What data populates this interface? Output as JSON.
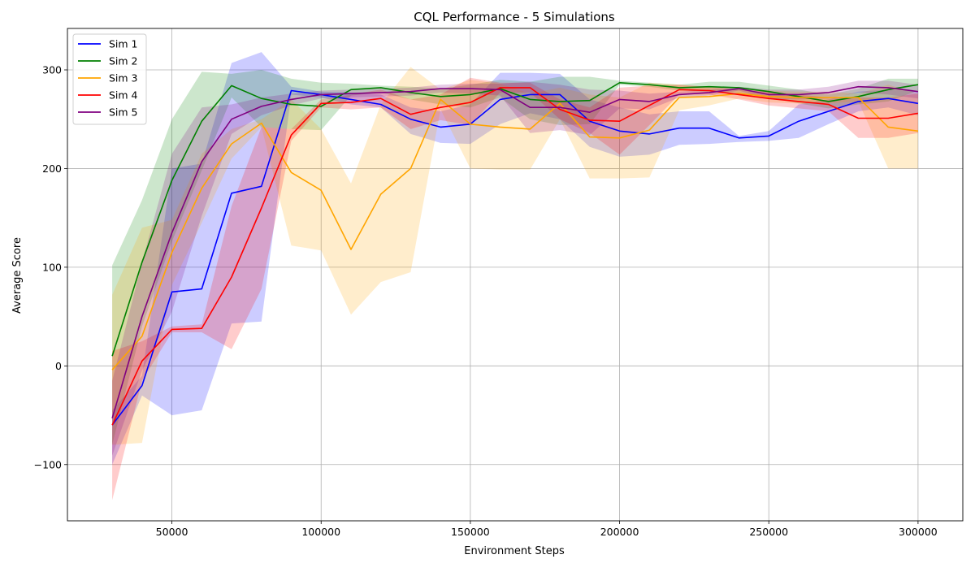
{
  "chart_data": {
    "type": "line",
    "title": "CQL Performance - 5 Simulations",
    "xlabel": "Environment Steps",
    "ylabel": "Average Score",
    "xlim": [
      15000,
      315000
    ],
    "ylim": [
      -157,
      342
    ],
    "xticks": [
      50000,
      100000,
      150000,
      200000,
      250000,
      300000
    ],
    "yticks": [
      -100,
      0,
      100,
      200,
      300
    ],
    "xtick_labels": [
      "50000",
      "100000",
      "150000",
      "200000",
      "250000",
      "300000"
    ],
    "ytick_labels": [
      "−100",
      "0",
      "100",
      "200",
      "300"
    ],
    "grid": true,
    "legend_position": "top-left",
    "x": [
      30000,
      40000,
      50000,
      60000,
      70000,
      80000,
      90000,
      100000,
      110000,
      120000,
      130000,
      140000,
      150000,
      160000,
      170000,
      180000,
      190000,
      200000,
      210000,
      220000,
      230000,
      240000,
      250000,
      260000,
      270000,
      280000,
      290000,
      300000
    ],
    "series": [
      {
        "name": "Sim 1",
        "color": "#0000ff",
        "values": [
          -60,
          -20,
          75,
          78,
          175,
          182,
          279,
          275,
          270,
          265,
          250,
          242,
          245,
          270,
          275,
          275,
          248,
          238,
          235,
          241,
          241,
          231,
          233,
          248,
          258,
          268,
          271,
          266
        ],
        "upper": [
          -45,
          -10,
          200,
          205,
          307,
          318,
          283,
          278,
          277,
          275,
          262,
          258,
          265,
          297,
          297,
          296,
          270,
          262,
          255,
          258,
          258,
          233,
          238,
          265,
          270,
          278,
          280,
          278
        ],
        "lower": [
          -100,
          -30,
          -50,
          -45,
          43,
          45,
          275,
          272,
          265,
          262,
          235,
          226,
          225,
          245,
          256,
          250,
          222,
          212,
          214,
          224,
          225,
          227,
          228,
          231,
          245,
          258,
          262,
          254
        ]
      },
      {
        "name": "Sim 2",
        "color": "#008000",
        "values": [
          10,
          105,
          188,
          248,
          284,
          271,
          265,
          263,
          280,
          282,
          277,
          273,
          275,
          281,
          270,
          268,
          269,
          287,
          285,
          282,
          283,
          282,
          278,
          273,
          268,
          273,
          280,
          285
        ],
        "upper": [
          102,
          168,
          250,
          298,
          296,
          300,
          291,
          287,
          286,
          284,
          283,
          281,
          285,
          290,
          288,
          293,
          293,
          289,
          287,
          285,
          288,
          288,
          284,
          280,
          275,
          281,
          291,
          291
        ],
        "lower": [
          -80,
          40,
          126,
          198,
          272,
          242,
          240,
          239,
          274,
          277,
          270,
          265,
          262,
          272,
          250,
          244,
          245,
          285,
          283,
          279,
          278,
          276,
          272,
          266,
          261,
          265,
          268,
          279
        ]
      },
      {
        "name": "Sim 3",
        "color": "#ffa500",
        "values": [
          -4,
          30,
          115,
          180,
          225,
          246,
          196,
          178,
          118,
          174,
          200,
          270,
          245,
          242,
          240,
          266,
          232,
          231,
          239,
          272,
          273,
          276,
          273,
          272,
          272,
          272,
          242,
          238
        ],
        "upper": [
          72,
          140,
          148,
          215,
          240,
          250,
          270,
          240,
          185,
          265,
          303,
          280,
          290,
          286,
          276,
          282,
          275,
          272,
          287,
          285,
          282,
          281,
          279,
          278,
          278,
          276,
          285,
          276
        ],
        "lower": [
          -80,
          -78,
          82,
          145,
          210,
          242,
          122,
          117,
          52,
          85,
          95,
          260,
          200,
          199,
          199,
          250,
          190,
          190,
          191,
          259,
          264,
          271,
          267,
          266,
          266,
          268,
          200,
          200
        ]
      },
      {
        "name": "Sim 4",
        "color": "#ff0000",
        "values": [
          -60,
          5,
          37,
          38,
          90,
          160,
          234,
          266,
          267,
          271,
          255,
          262,
          267,
          282,
          282,
          260,
          249,
          248,
          264,
          280,
          279,
          275,
          271,
          268,
          265,
          251,
          251,
          256
        ],
        "upper": [
          15,
          25,
          40,
          42,
          162,
          242,
          240,
          270,
          275,
          280,
          270,
          275,
          292,
          287,
          287,
          270,
          262,
          282,
          284,
          285,
          283,
          280,
          278,
          275,
          272,
          272,
          272,
          276
        ],
        "lower": [
          -136,
          -15,
          34,
          34,
          17,
          78,
          228,
          262,
          260,
          262,
          240,
          249,
          244,
          277,
          277,
          250,
          236,
          214,
          244,
          275,
          275,
          270,
          264,
          261,
          258,
          231,
          231,
          236
        ]
      },
      {
        "name": "Sim 5",
        "color": "#800080",
        "values": [
          -53,
          50,
          135,
          207,
          250,
          263,
          270,
          275,
          276,
          277,
          278,
          281,
          281,
          280,
          262,
          262,
          257,
          270,
          268,
          275,
          277,
          281,
          275,
          275,
          277,
          283,
          282,
          278
        ],
        "upper": [
          -15,
          105,
          215,
          262,
          265,
          272,
          276,
          279,
          280,
          281,
          282,
          285,
          286,
          286,
          288,
          285,
          280,
          279,
          276,
          278,
          280,
          283,
          280,
          280,
          283,
          289,
          289,
          285
        ],
        "lower": [
          -91,
          -5,
          55,
          152,
          235,
          254,
          264,
          271,
          272,
          273,
          274,
          277,
          276,
          274,
          236,
          239,
          234,
          261,
          260,
          272,
          274,
          279,
          270,
          270,
          271,
          277,
          275,
          271
        ]
      }
    ]
  }
}
